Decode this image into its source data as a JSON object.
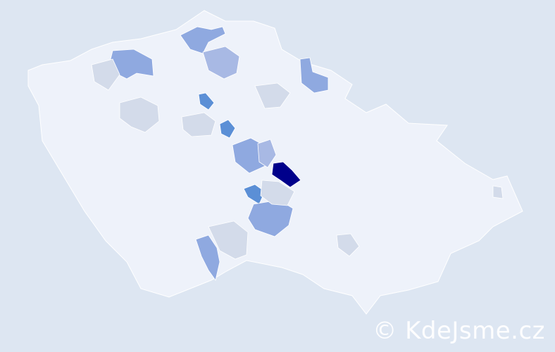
{
  "map": {
    "background_color": "#dde6f2",
    "base_region_color": "#eef2fa",
    "border_color": "#ffffff",
    "highlight_colors": {
      "highest": "#00008b",
      "high": "#5b8fd6",
      "medium": "#8fa9e0",
      "low": "#a8b9e4",
      "lowest": "#d3dbea"
    }
  },
  "watermark": {
    "text": "© KdeJsme.cz"
  }
}
